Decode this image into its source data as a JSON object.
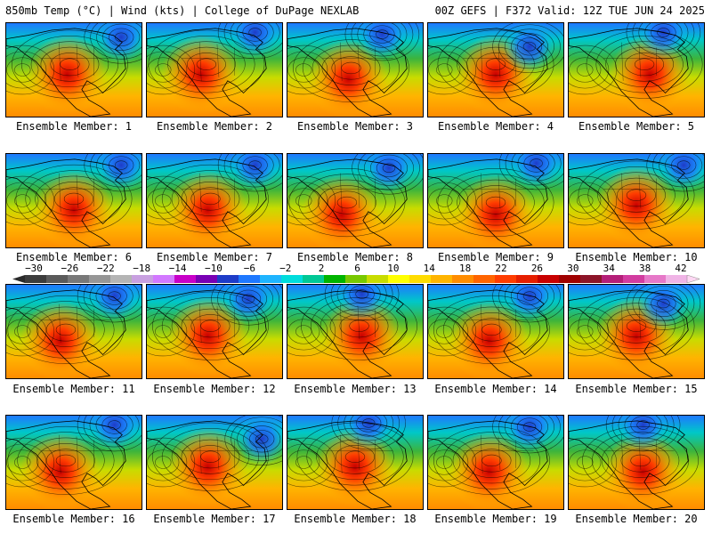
{
  "header": {
    "left": "850mb Temp (°C) | Wind (kts) | College of DuPage NEXLAB",
    "right": "00Z GEFS | F372 Valid: 12Z TUE JUN 24 2025"
  },
  "panels": [
    {
      "label": "Ensemble Member: 1",
      "hot": [
        0.45,
        0.55
      ],
      "cold": [
        0.85,
        0.15
      ]
    },
    {
      "label": "Ensemble Member: 2",
      "hot": [
        0.4,
        0.55
      ],
      "cold": [
        0.8,
        0.1
      ]
    },
    {
      "label": "Ensemble Member: 3",
      "hot": [
        0.45,
        0.6
      ],
      "cold": [
        0.7,
        0.12
      ]
    },
    {
      "label": "Ensemble Member: 4",
      "hot": [
        0.5,
        0.55
      ],
      "cold": [
        0.75,
        0.25
      ]
    },
    {
      "label": "Ensemble Member: 5",
      "hot": [
        0.6,
        0.55
      ],
      "cold": [
        0.7,
        0.1
      ]
    },
    {
      "label": "Ensemble Member: 6",
      "hot": [
        0.5,
        0.6
      ],
      "cold": [
        0.85,
        0.12
      ]
    },
    {
      "label": "Ensemble Member: 7",
      "hot": [
        0.45,
        0.6
      ],
      "cold": [
        0.8,
        0.12
      ]
    },
    {
      "label": "Ensemble Member: 8",
      "hot": [
        0.4,
        0.65
      ],
      "cold": [
        0.75,
        0.15
      ]
    },
    {
      "label": "Ensemble Member: 9",
      "hot": [
        0.5,
        0.65
      ],
      "cold": [
        0.8,
        0.1
      ]
    },
    {
      "label": "Ensemble Member: 10",
      "hot": [
        0.5,
        0.55
      ],
      "cold": [
        0.85,
        0.12
      ]
    },
    {
      "label": "Ensemble Member: 11",
      "hot": [
        0.4,
        0.6
      ],
      "cold": [
        0.8,
        0.12
      ]
    },
    {
      "label": "Ensemble Member: 12",
      "hot": [
        0.45,
        0.55
      ],
      "cold": [
        0.75,
        0.15
      ]
    },
    {
      "label": "Ensemble Member: 13",
      "hot": [
        0.55,
        0.55
      ],
      "cold": [
        0.55,
        0.1
      ]
    },
    {
      "label": "Ensemble Member: 14",
      "hot": [
        0.45,
        0.6
      ],
      "cold": [
        0.75,
        0.12
      ]
    },
    {
      "label": "Ensemble Member: 15",
      "hot": [
        0.5,
        0.55
      ],
      "cold": [
        0.7,
        0.2
      ]
    },
    {
      "label": "Ensemble Member: 16",
      "hot": [
        0.4,
        0.6
      ],
      "cold": [
        0.8,
        0.1
      ]
    },
    {
      "label": "Ensemble Member: 17",
      "hot": [
        0.45,
        0.55
      ],
      "cold": [
        0.85,
        0.25
      ]
    },
    {
      "label": "Ensemble Member: 18",
      "hot": [
        0.5,
        0.55
      ],
      "cold": [
        0.6,
        0.08
      ]
    },
    {
      "label": "Ensemble Member: 19",
      "hot": [
        0.45,
        0.6
      ],
      "cold": [
        0.75,
        0.12
      ]
    },
    {
      "label": "Ensemble Member: 20",
      "hot": [
        0.55,
        0.6
      ],
      "cold": [
        0.55,
        0.1
      ]
    }
  ],
  "colorbar": {
    "ticks": [
      "−30",
      "−26",
      "−22",
      "−18",
      "−14",
      "−10",
      "−6",
      "−2",
      "2",
      "6",
      "10",
      "14",
      "18",
      "22",
      "26",
      "30",
      "34",
      "38",
      "42"
    ],
    "colors": [
      "#3c3c3c",
      "#5a5a5a",
      "#787878",
      "#969696",
      "#b4b4b4",
      "#c8a0e0",
      "#d278ff",
      "#c800c8",
      "#7800b4",
      "#1e3cc8",
      "#1e78ff",
      "#1eb4ff",
      "#00dcdc",
      "#00c896",
      "#00b400",
      "#78c800",
      "#c8dc00",
      "#ffff00",
      "#ffdc00",
      "#ffb400",
      "#ff8c00",
      "#ff6400",
      "#ff3c00",
      "#e61e00",
      "#c80000",
      "#a00000",
      "#8c1428",
      "#b41e78",
      "#d23ca0",
      "#e678c8",
      "#f0b4e6"
    ]
  }
}
